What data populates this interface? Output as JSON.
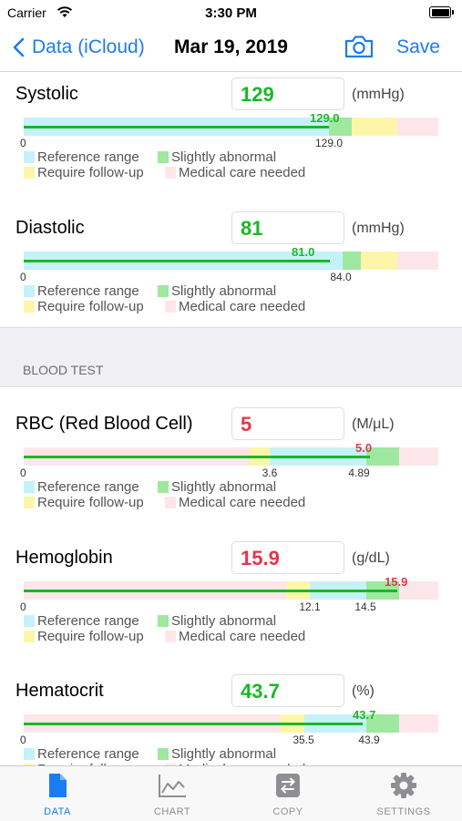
{
  "status": {
    "carrier": "Carrier",
    "time": "3:30 PM"
  },
  "nav": {
    "back_label": "Data (iCloud)",
    "title": "Mar 19, 2019",
    "save_label": "Save"
  },
  "colors": {
    "accent": "#1a7cf2",
    "normal": "#19b824",
    "abnormal": "#e6354a",
    "reference": "#c5f2f8",
    "slightly": "#9fe89f",
    "followup": "#fdf6a9",
    "medical": "#fde6ea"
  },
  "legend": {
    "reference": "Reference range",
    "slightly": "Slightly abnormal",
    "followup": "Require follow-up",
    "medical": "Medical care needed"
  },
  "section_blood_test": "BLOOD TEST",
  "items": [
    {
      "name": "Systolic",
      "value": "129",
      "unit": "(mmHg)",
      "bar_value": "129.0",
      "status": "normal",
      "ticks": [
        "0",
        "129.0"
      ]
    },
    {
      "name": "Diastolic",
      "value": "81",
      "unit": "(mmHg)",
      "bar_value": "81.0",
      "status": "normal",
      "ticks": [
        "0",
        "84.0"
      ]
    },
    {
      "name": "RBC (Red Blood Cell)",
      "value": "5",
      "unit": "(M/μL)",
      "bar_value": "5.0",
      "status": "abnormal",
      "ticks": [
        "0",
        "3.6",
        "4.89"
      ]
    },
    {
      "name": "Hemoglobin",
      "value": "15.9",
      "unit": "(g/dL)",
      "bar_value": "15.9",
      "status": "abnormal",
      "ticks": [
        "0",
        "12.1",
        "14.5"
      ]
    },
    {
      "name": "Hematocrit",
      "value": "43.7",
      "unit": "(%)",
      "bar_value": "43.7",
      "status": "normal",
      "ticks": [
        "0",
        "35.5",
        "43.9"
      ]
    }
  ],
  "tabs": [
    {
      "label": "DATA",
      "icon": "document-icon",
      "active": true
    },
    {
      "label": "CHART",
      "icon": "chart-icon",
      "active": false
    },
    {
      "label": "COPY",
      "icon": "copy-icon",
      "active": false
    },
    {
      "label": "SETTINGS",
      "icon": "gear-icon",
      "active": false
    }
  ]
}
